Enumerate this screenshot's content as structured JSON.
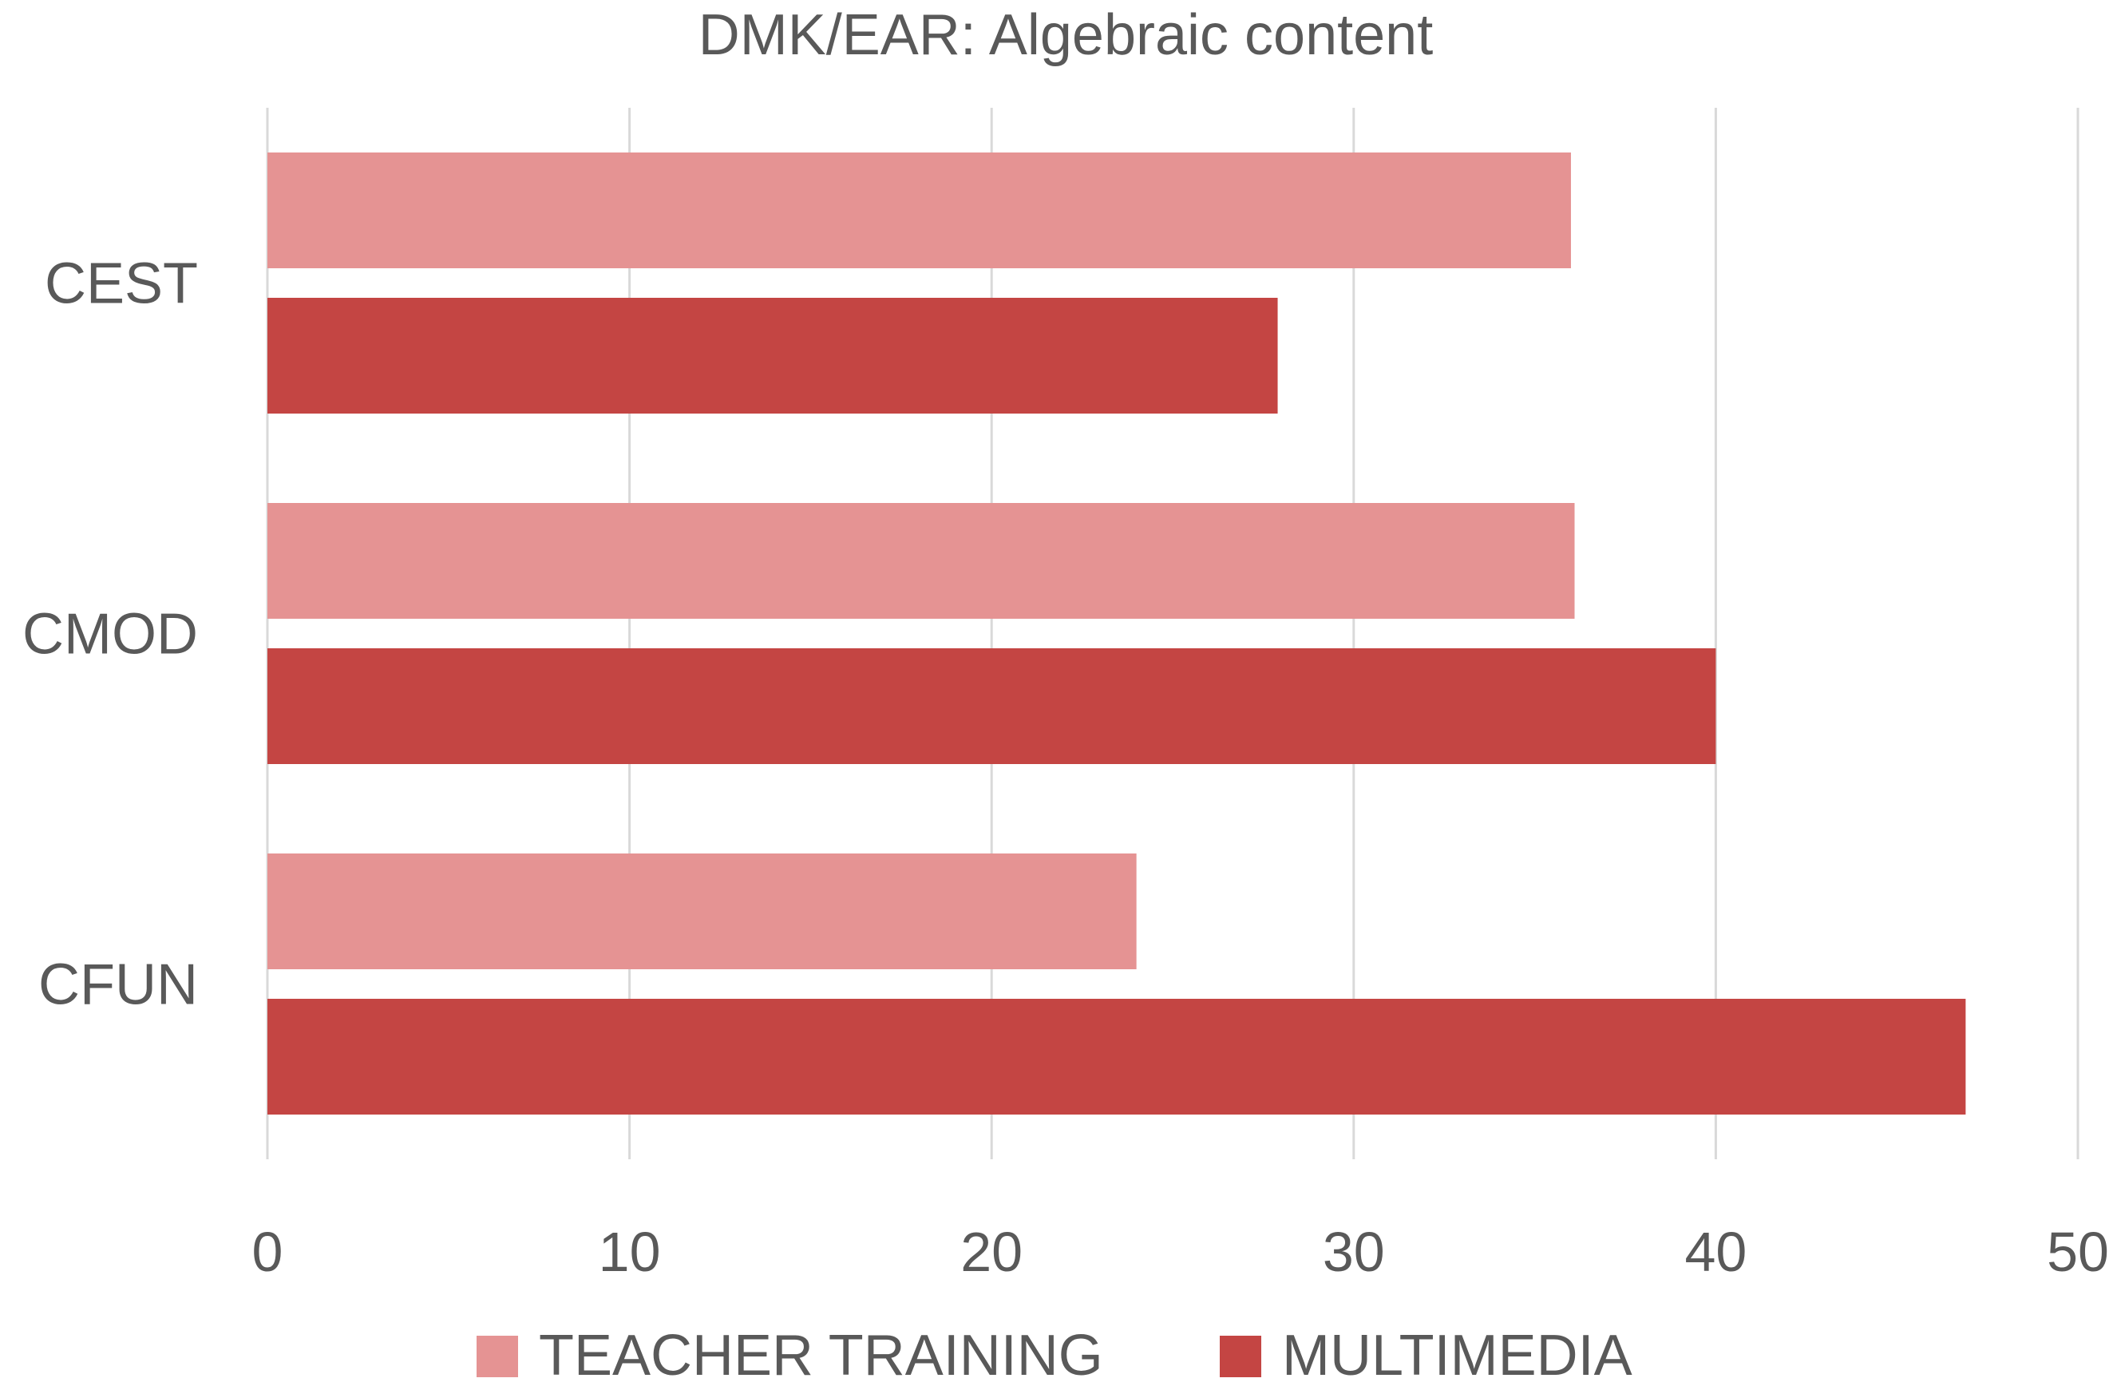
{
  "chart_data": {
    "type": "bar",
    "orientation": "horizontal",
    "title": "DMK/EAR: Algebraic content",
    "xlabel": "",
    "ylabel": "",
    "categories": [
      "CEST",
      "CMOD",
      "CFUN"
    ],
    "series": [
      {
        "name": "TEACHER TRAINING",
        "color": "#e59393",
        "values": [
          36,
          36.1,
          24
        ]
      },
      {
        "name": "MULTIMEDIA",
        "color": "#c44543",
        "values": [
          27.9,
          40,
          46.9
        ]
      }
    ],
    "xlim": [
      0,
      50
    ],
    "xticks": [
      "0",
      "10",
      "20",
      "30",
      "40",
      "50"
    ],
    "grid": true,
    "legend_position": "bottom"
  }
}
